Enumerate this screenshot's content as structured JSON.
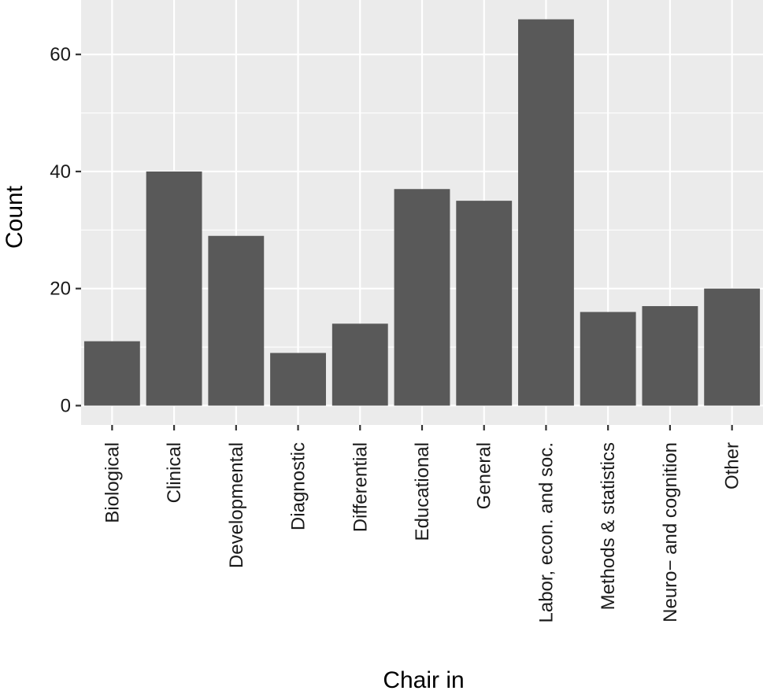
{
  "chart_data": {
    "type": "bar",
    "title": "",
    "xlabel": "Chair in",
    "ylabel": "Count",
    "categories": [
      "Biological",
      "Clinical",
      "Developmental",
      "Diagnostic",
      "Differential",
      "Educational",
      "General",
      "Labor, econ. and soc.",
      "Methods & statistics",
      "Neuro− and cognition",
      "Other"
    ],
    "values": [
      11,
      40,
      29,
      9,
      14,
      37,
      35,
      66,
      16,
      17,
      20
    ],
    "ylim": [
      -3.3,
      69.3
    ],
    "yticks": [
      0,
      20,
      40,
      60
    ],
    "grid": true,
    "colors": {
      "panel_background": "#EBEBEB",
      "grid_major": "#FFFFFF",
      "bar_fill": "#595959",
      "tick_mark": "#333333"
    }
  }
}
